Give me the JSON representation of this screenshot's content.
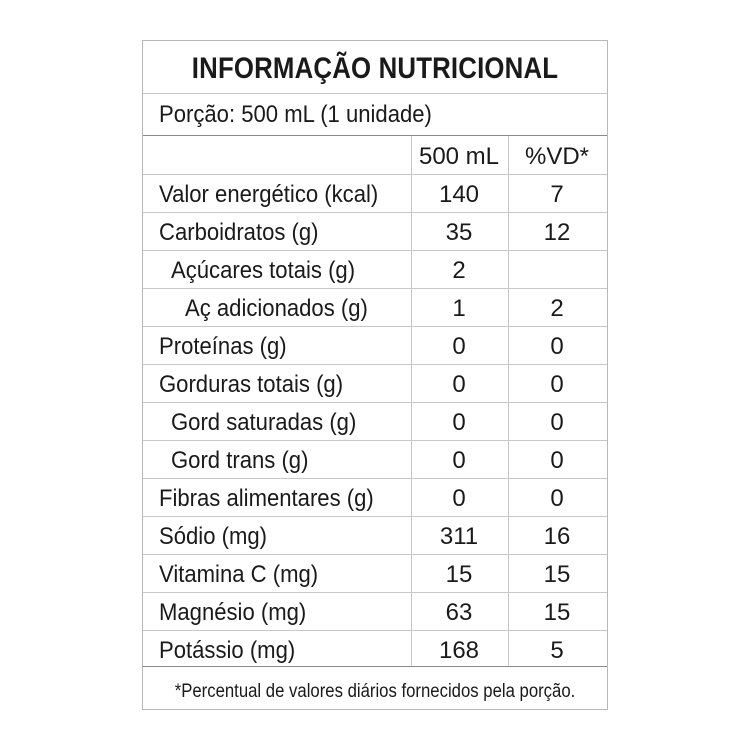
{
  "title": "INFORMAÇÃO NUTRICIONAL",
  "serving": "Porção: 500 mL (1 unidade)",
  "columns": {
    "amount": "500 mL",
    "dv": "%VD*"
  },
  "rows": [
    {
      "name": "Valor energético (kcal)",
      "amount": "140",
      "dv": "7",
      "indent": 0
    },
    {
      "name": "Carboidratos (g)",
      "amount": "35",
      "dv": "12",
      "indent": 0
    },
    {
      "name": "Açúcares totais (g)",
      "amount": "2",
      "dv": "",
      "indent": 1
    },
    {
      "name": "Aç adicionados (g)",
      "amount": "1",
      "dv": "2",
      "indent": 2
    },
    {
      "name": "Proteínas (g)",
      "amount": "0",
      "dv": "0",
      "indent": 0
    },
    {
      "name": "Gorduras totais (g)",
      "amount": "0",
      "dv": "0",
      "indent": 0
    },
    {
      "name": "Gord saturadas (g)",
      "amount": "0",
      "dv": "0",
      "indent": 1
    },
    {
      "name": "Gord trans (g)",
      "amount": "0",
      "dv": "0",
      "indent": 1
    },
    {
      "name": "Fibras alimentares (g)",
      "amount": "0",
      "dv": "0",
      "indent": 0
    },
    {
      "name": "Sódio (mg)",
      "amount": "311",
      "dv": "16",
      "indent": 0
    },
    {
      "name": "Vitamina C (mg)",
      "amount": "15",
      "dv": "15",
      "indent": 0
    },
    {
      "name": "Magnésio (mg)",
      "amount": "63",
      "dv": "15",
      "indent": 0
    },
    {
      "name": "Potássio (mg)",
      "amount": "168",
      "dv": "5",
      "indent": 0
    }
  ],
  "footnote": "*Percentual de valores diários fornecidos pela porção."
}
